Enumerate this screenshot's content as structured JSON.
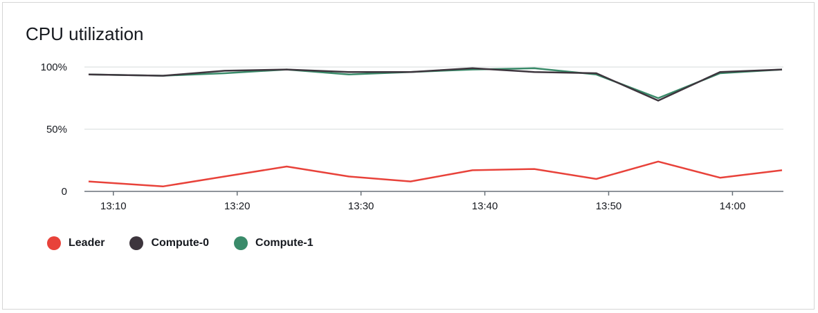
{
  "widget": {
    "title": "CPU utilization"
  },
  "chart_data": {
    "type": "line",
    "title": "CPU utilization",
    "xlabel": "",
    "ylabel": "",
    "x": [
      "13:08",
      "13:14",
      "13:19",
      "13:24",
      "13:29",
      "13:34",
      "13:39",
      "13:44",
      "13:49",
      "13:54",
      "13:59",
      "14:04"
    ],
    "x_tick_labels": [
      "13:10",
      "13:20",
      "13:30",
      "13:40",
      "13:50",
      "14:00"
    ],
    "y_tick_labels": [
      "100%",
      "50%",
      "0"
    ],
    "ylim": [
      0,
      100
    ],
    "grid": true,
    "legend_position": "bottom-left",
    "series": [
      {
        "name": "Leader",
        "color": "#e8423a",
        "values": [
          8,
          4,
          12,
          20,
          12,
          8,
          17,
          18,
          10,
          24,
          11,
          17
        ]
      },
      {
        "name": "Compute-0",
        "color": "#3d353d",
        "values": [
          94,
          93,
          97,
          98,
          96,
          96,
          99,
          96,
          95,
          73,
          96,
          98
        ]
      },
      {
        "name": "Compute-1",
        "color": "#3a8b6a",
        "values": [
          94,
          93,
          95,
          98,
          94,
          96,
          98,
          99,
          94,
          75,
          95,
          98
        ]
      }
    ]
  }
}
